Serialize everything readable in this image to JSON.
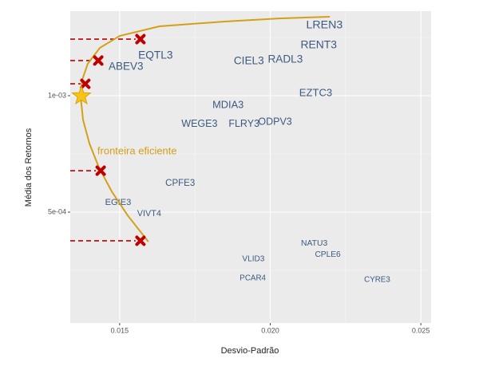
{
  "chart_data": {
    "type": "scatter",
    "x_label": "Desvio-Padrão",
    "y_label": "Média dos Retornos",
    "xlim": [
      0.01336,
      0.02534
    ],
    "ylim": [
      2.4e-05,
      0.001363
    ],
    "xticks": [
      0.015,
      {
        "value": 0.02,
        "label": "0.020"
      },
      0.025
    ],
    "yticks": [
      {
        "value": 0.0005,
        "label": "5e-04"
      },
      {
        "value": 0.001,
        "label": "1e-03"
      }
    ],
    "grid": true,
    "stocks": {
      "color": "#3d5a80",
      "labels": [
        "LREN3",
        "RENT3",
        "CIEL3",
        "RADL3",
        "EQTL3",
        "ABEV3",
        "EZTC3",
        "MDIA3",
        "WEGE3",
        "FLRY3",
        "ODPV3",
        "CPFE3",
        "EGIE3",
        "VIVT4",
        "NATU3",
        "CPLE6",
        "VLID3",
        "PCAR4",
        "CYRE3"
      ],
      "x": [
        0.0218,
        0.02161,
        0.01929,
        0.0205,
        0.01619,
        0.01521,
        0.02151,
        0.0186,
        0.01765,
        0.01913,
        0.02016,
        0.01701,
        0.01495,
        0.01598,
        0.02146,
        0.02191,
        0.01944,
        0.01942,
        0.02355
      ],
      "y": [
        0.0013014,
        0.001216,
        0.001147,
        0.001154,
        0.001171,
        0.001123,
        0.00101,
        0.000959,
        0.000877,
        0.000877,
        0.000887,
        0.000623,
        0.000541,
        0.000493,
        0.000366,
        0.000318,
        0.000298,
        0.000216,
        0.000209
      ]
    },
    "frontier": {
      "label": "fronteira eficiente",
      "color": "#d4a017",
      "x": [
        0.015953,
        0.015265,
        0.014736,
        0.014312,
        0.013995,
        0.013783,
        0.013704,
        0.013757,
        0.01394,
        0.01434,
        0.015,
        0.01632,
        0.01844,
        0.02029,
        0.02198
      ],
      "y": [
        0.000373,
        0.000486,
        0.000589,
        0.000692,
        0.000795,
        0.000897,
        0.000997,
        0.001068,
        0.001137,
        0.001205,
        0.001257,
        0.001298,
        0.001318,
        0.001332,
        0.001339
      ]
    },
    "portfolios": {
      "color": "#c00000",
      "x": [
        0.01569,
        0.01437,
        0.01386,
        0.01429,
        0.01569
      ],
      "y": [
        0.000377,
        0.000678,
        0.001051,
        0.001151,
        0.001243
      ]
    },
    "min_variance": {
      "color": "#f7c21a",
      "x": [
        0.01373
      ],
      "y": [
        0.000999
      ]
    }
  }
}
